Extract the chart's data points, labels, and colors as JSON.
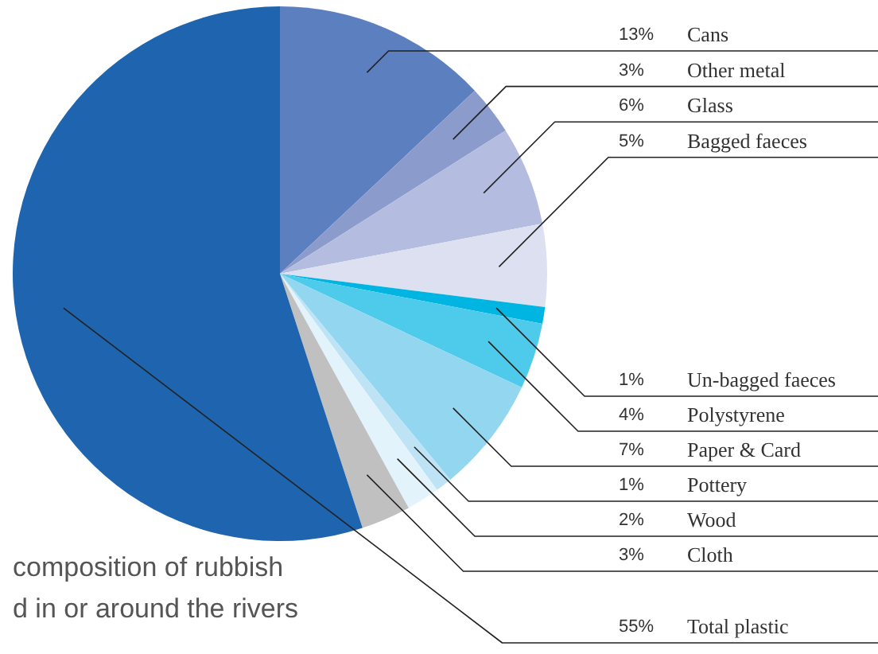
{
  "chart_data": {
    "type": "pie",
    "categories": [
      "Cans",
      "Other metal",
      "Glass",
      "Bagged faeces",
      "Un-bagged faeces",
      "Polystyrene",
      "Paper & Card",
      "Pottery",
      "Wood",
      "Cloth",
      "Total plastic"
    ],
    "values": [
      13,
      3,
      6,
      5,
      1,
      4,
      7,
      1,
      2,
      3,
      55
    ],
    "value_labels": [
      "13%",
      "3%",
      "6%",
      "5%",
      "1%",
      "4%",
      "7%",
      "1%",
      "2%",
      "3%",
      "55%"
    ],
    "colors": [
      "#5b7fbf",
      "#8b9bcc",
      "#b4bde0",
      "#dde0f0",
      "#00b5e2",
      "#4ecbeb",
      "#93d6f0",
      "#bde3f5",
      "#e2f3fb",
      "#c0c0c0",
      "#1e64ae"
    ],
    "annotations": [
      "composition of rubbish",
      "d in or around the rivers"
    ]
  }
}
